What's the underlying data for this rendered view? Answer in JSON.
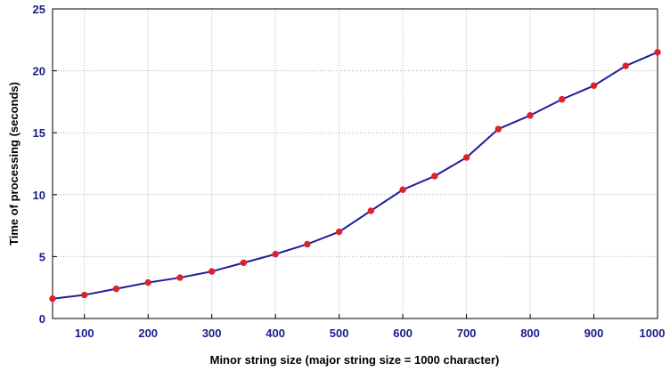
{
  "chart_data": {
    "type": "line",
    "title": "",
    "xlabel": "Minor string size (major string size = 1000 character)",
    "ylabel": "Time of processing (seconds)",
    "xlim": [
      50,
      1000
    ],
    "ylim": [
      0,
      25
    ],
    "xticks": [
      100,
      200,
      300,
      400,
      500,
      600,
      700,
      800,
      900,
      1000
    ],
    "yticks": [
      0,
      5,
      10,
      15,
      20,
      25
    ],
    "grid": true,
    "line_color": "#1f1f9e",
    "marker_color": "#e0202a",
    "series": [
      {
        "x": [
          50,
          100,
          150,
          200,
          250,
          300,
          350,
          400,
          450,
          500,
          550,
          600,
          650,
          700,
          750,
          800,
          850,
          900,
          950,
          1000
        ],
        "values": [
          1.6,
          1.9,
          2.4,
          2.9,
          3.3,
          3.8,
          4.5,
          5.2,
          6.0,
          7.0,
          8.7,
          10.4,
          11.5,
          13.0,
          15.3,
          16.4,
          17.7,
          18.8,
          20.4,
          21.5
        ]
      }
    ]
  }
}
